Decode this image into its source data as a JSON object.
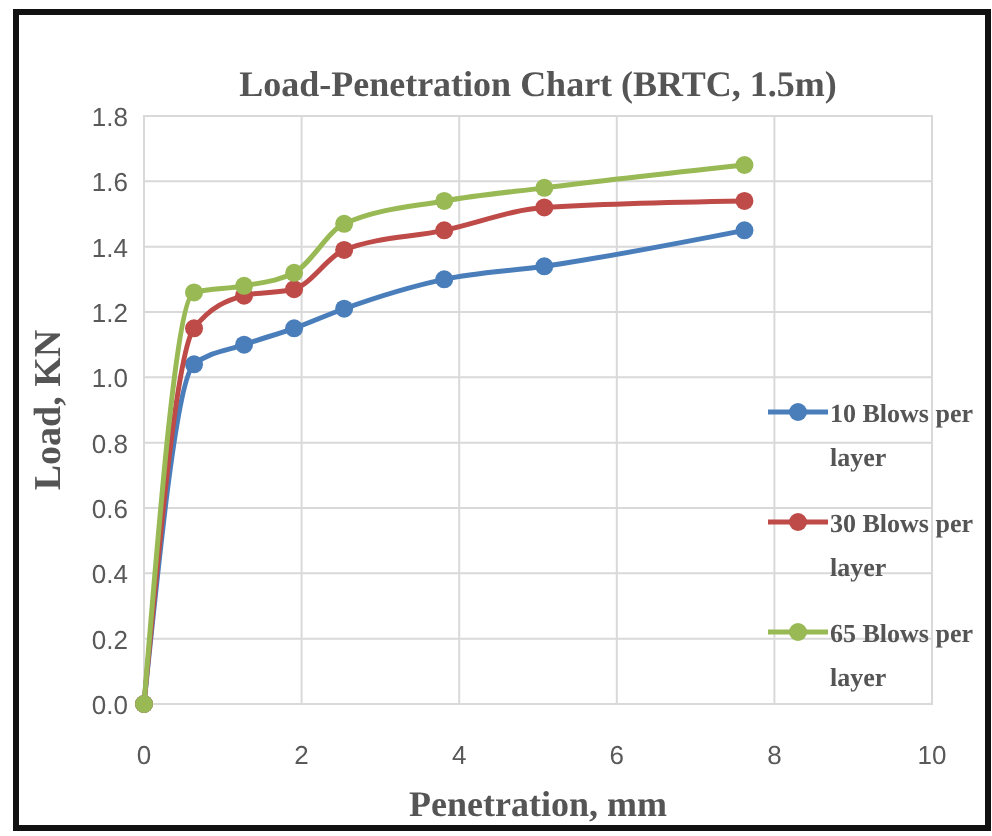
{
  "chart_data": {
    "type": "line",
    "title": "Load-Penetration  Chart (BRTC, 1.5m)",
    "xlabel": "Penetration, mm",
    "ylabel": "Load, KN",
    "x": [
      0,
      0.635,
      1.27,
      1.905,
      2.54,
      3.81,
      5.08,
      7.62
    ],
    "series": [
      {
        "name": "10 Blows per layer",
        "color": "#4a7ebb",
        "values": [
          0,
          1.04,
          1.1,
          1.15,
          1.21,
          1.3,
          1.34,
          1.45
        ]
      },
      {
        "name": "30 Blows per layer",
        "color": "#be4b48",
        "values": [
          0,
          1.15,
          1.25,
          1.27,
          1.39,
          1.45,
          1.52,
          1.54
        ]
      },
      {
        "name": "65 Blows per layer",
        "color": "#98b954",
        "values": [
          0,
          1.26,
          1.28,
          1.32,
          1.47,
          1.54,
          1.58,
          1.65
        ]
      }
    ],
    "xlim": [
      0,
      10
    ],
    "xticks": [
      0,
      2,
      4,
      6,
      8,
      10
    ],
    "ylim": [
      0,
      1.8
    ],
    "yticks": [
      {
        "value": 0,
        "label": "0.0"
      },
      0.2,
      0.4,
      0.6,
      0.8,
      {
        "value": 1,
        "label": "1.0"
      },
      1.2,
      1.4,
      1.6,
      1.8
    ],
    "grid": true,
    "legend": "right",
    "marker": "circle",
    "line_style": "solid"
  }
}
